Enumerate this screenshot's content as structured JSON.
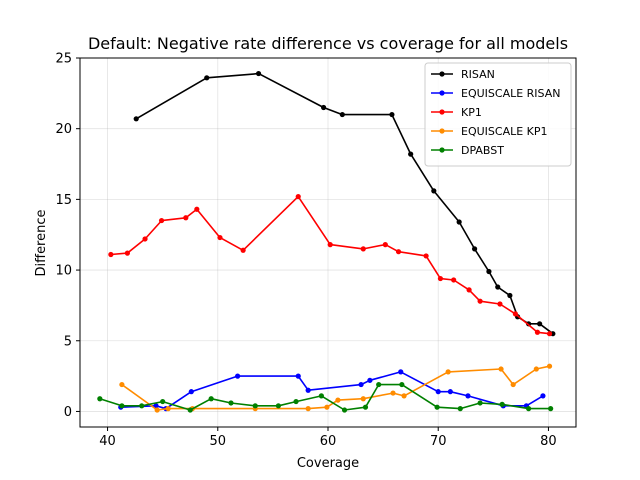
{
  "chart_data": {
    "type": "line",
    "title": "Default: Negative rate difference vs coverage for all models",
    "xlabel": "Coverage",
    "ylabel": "Difference",
    "xlim": [
      37.5,
      82.5
    ],
    "ylim": [
      -1.1,
      25.0
    ],
    "xticks": [
      40,
      50,
      60,
      70,
      80
    ],
    "yticks": [
      0,
      5,
      10,
      15,
      20,
      25
    ],
    "grid": true,
    "legend_position": "top-right",
    "series": [
      {
        "name": "RISAN",
        "color": "#000000",
        "points": [
          [
            42.6,
            20.7
          ],
          [
            49.0,
            23.6
          ],
          [
            53.7,
            23.9
          ],
          [
            59.6,
            21.5
          ],
          [
            61.3,
            21.0
          ],
          [
            65.8,
            21.0
          ],
          [
            67.5,
            18.2
          ],
          [
            69.6,
            15.6
          ],
          [
            71.9,
            13.4
          ],
          [
            73.3,
            11.5
          ],
          [
            74.6,
            9.9
          ],
          [
            75.4,
            8.8
          ],
          [
            76.5,
            8.2
          ],
          [
            77.2,
            6.7
          ],
          [
            78.2,
            6.2
          ],
          [
            79.2,
            6.2
          ],
          [
            80.4,
            5.5
          ]
        ]
      },
      {
        "name": "EQUISCALE RISAN",
        "color": "#0000ff",
        "points": [
          [
            41.2,
            0.3
          ],
          [
            44.4,
            0.4
          ],
          [
            45.3,
            0.2
          ],
          [
            47.6,
            1.4
          ],
          [
            51.8,
            2.5
          ],
          [
            57.3,
            2.5
          ],
          [
            58.2,
            1.5
          ],
          [
            63.0,
            1.9
          ],
          [
            63.8,
            2.2
          ],
          [
            66.6,
            2.8
          ],
          [
            70.0,
            1.4
          ],
          [
            71.1,
            1.4
          ],
          [
            72.7,
            1.1
          ],
          [
            75.9,
            0.4
          ],
          [
            78.0,
            0.4
          ],
          [
            79.5,
            1.1
          ]
        ]
      },
      {
        "name": "KP1",
        "color": "#ff0000",
        "points": [
          [
            40.3,
            11.1
          ],
          [
            41.8,
            11.2
          ],
          [
            43.4,
            12.2
          ],
          [
            44.9,
            13.5
          ],
          [
            47.1,
            13.7
          ],
          [
            48.1,
            14.3
          ],
          [
            50.2,
            12.3
          ],
          [
            52.3,
            11.4
          ],
          [
            57.3,
            15.2
          ],
          [
            60.2,
            11.8
          ],
          [
            63.2,
            11.5
          ],
          [
            65.2,
            11.8
          ],
          [
            66.4,
            11.3
          ],
          [
            68.9,
            11.0
          ],
          [
            70.2,
            9.4
          ],
          [
            71.4,
            9.3
          ],
          [
            72.8,
            8.6
          ],
          [
            73.8,
            7.8
          ],
          [
            75.6,
            7.6
          ],
          [
            77.0,
            6.9
          ],
          [
            79.0,
            5.6
          ],
          [
            80.1,
            5.5
          ]
        ]
      },
      {
        "name": "EQUISCALE KP1",
        "color": "#ff8c00",
        "points": [
          [
            41.3,
            1.9
          ],
          [
            44.5,
            0.1
          ],
          [
            45.5,
            0.2
          ],
          [
            47.7,
            0.2
          ],
          [
            53.4,
            0.2
          ],
          [
            58.2,
            0.2
          ],
          [
            59.9,
            0.3
          ],
          [
            60.9,
            0.8
          ],
          [
            63.2,
            0.9
          ],
          [
            65.9,
            1.3
          ],
          [
            66.9,
            1.1
          ],
          [
            70.9,
            2.8
          ],
          [
            75.7,
            3.0
          ],
          [
            76.8,
            1.9
          ],
          [
            78.9,
            3.0
          ],
          [
            80.1,
            3.2
          ]
        ]
      },
      {
        "name": "DPABST",
        "color": "#008000",
        "points": [
          [
            39.3,
            0.9
          ],
          [
            41.3,
            0.4
          ],
          [
            43.1,
            0.4
          ],
          [
            45.0,
            0.7
          ],
          [
            47.5,
            0.1
          ],
          [
            49.4,
            0.9
          ],
          [
            51.2,
            0.6
          ],
          [
            53.4,
            0.4
          ],
          [
            55.5,
            0.4
          ],
          [
            57.1,
            0.7
          ],
          [
            59.4,
            1.1
          ],
          [
            61.5,
            0.1
          ],
          [
            63.4,
            0.3
          ],
          [
            64.6,
            1.9
          ],
          [
            66.7,
            1.9
          ],
          [
            69.9,
            0.3
          ],
          [
            72.0,
            0.2
          ],
          [
            73.8,
            0.6
          ],
          [
            75.8,
            0.5
          ],
          [
            78.2,
            0.2
          ],
          [
            80.2,
            0.2
          ]
        ]
      }
    ]
  }
}
